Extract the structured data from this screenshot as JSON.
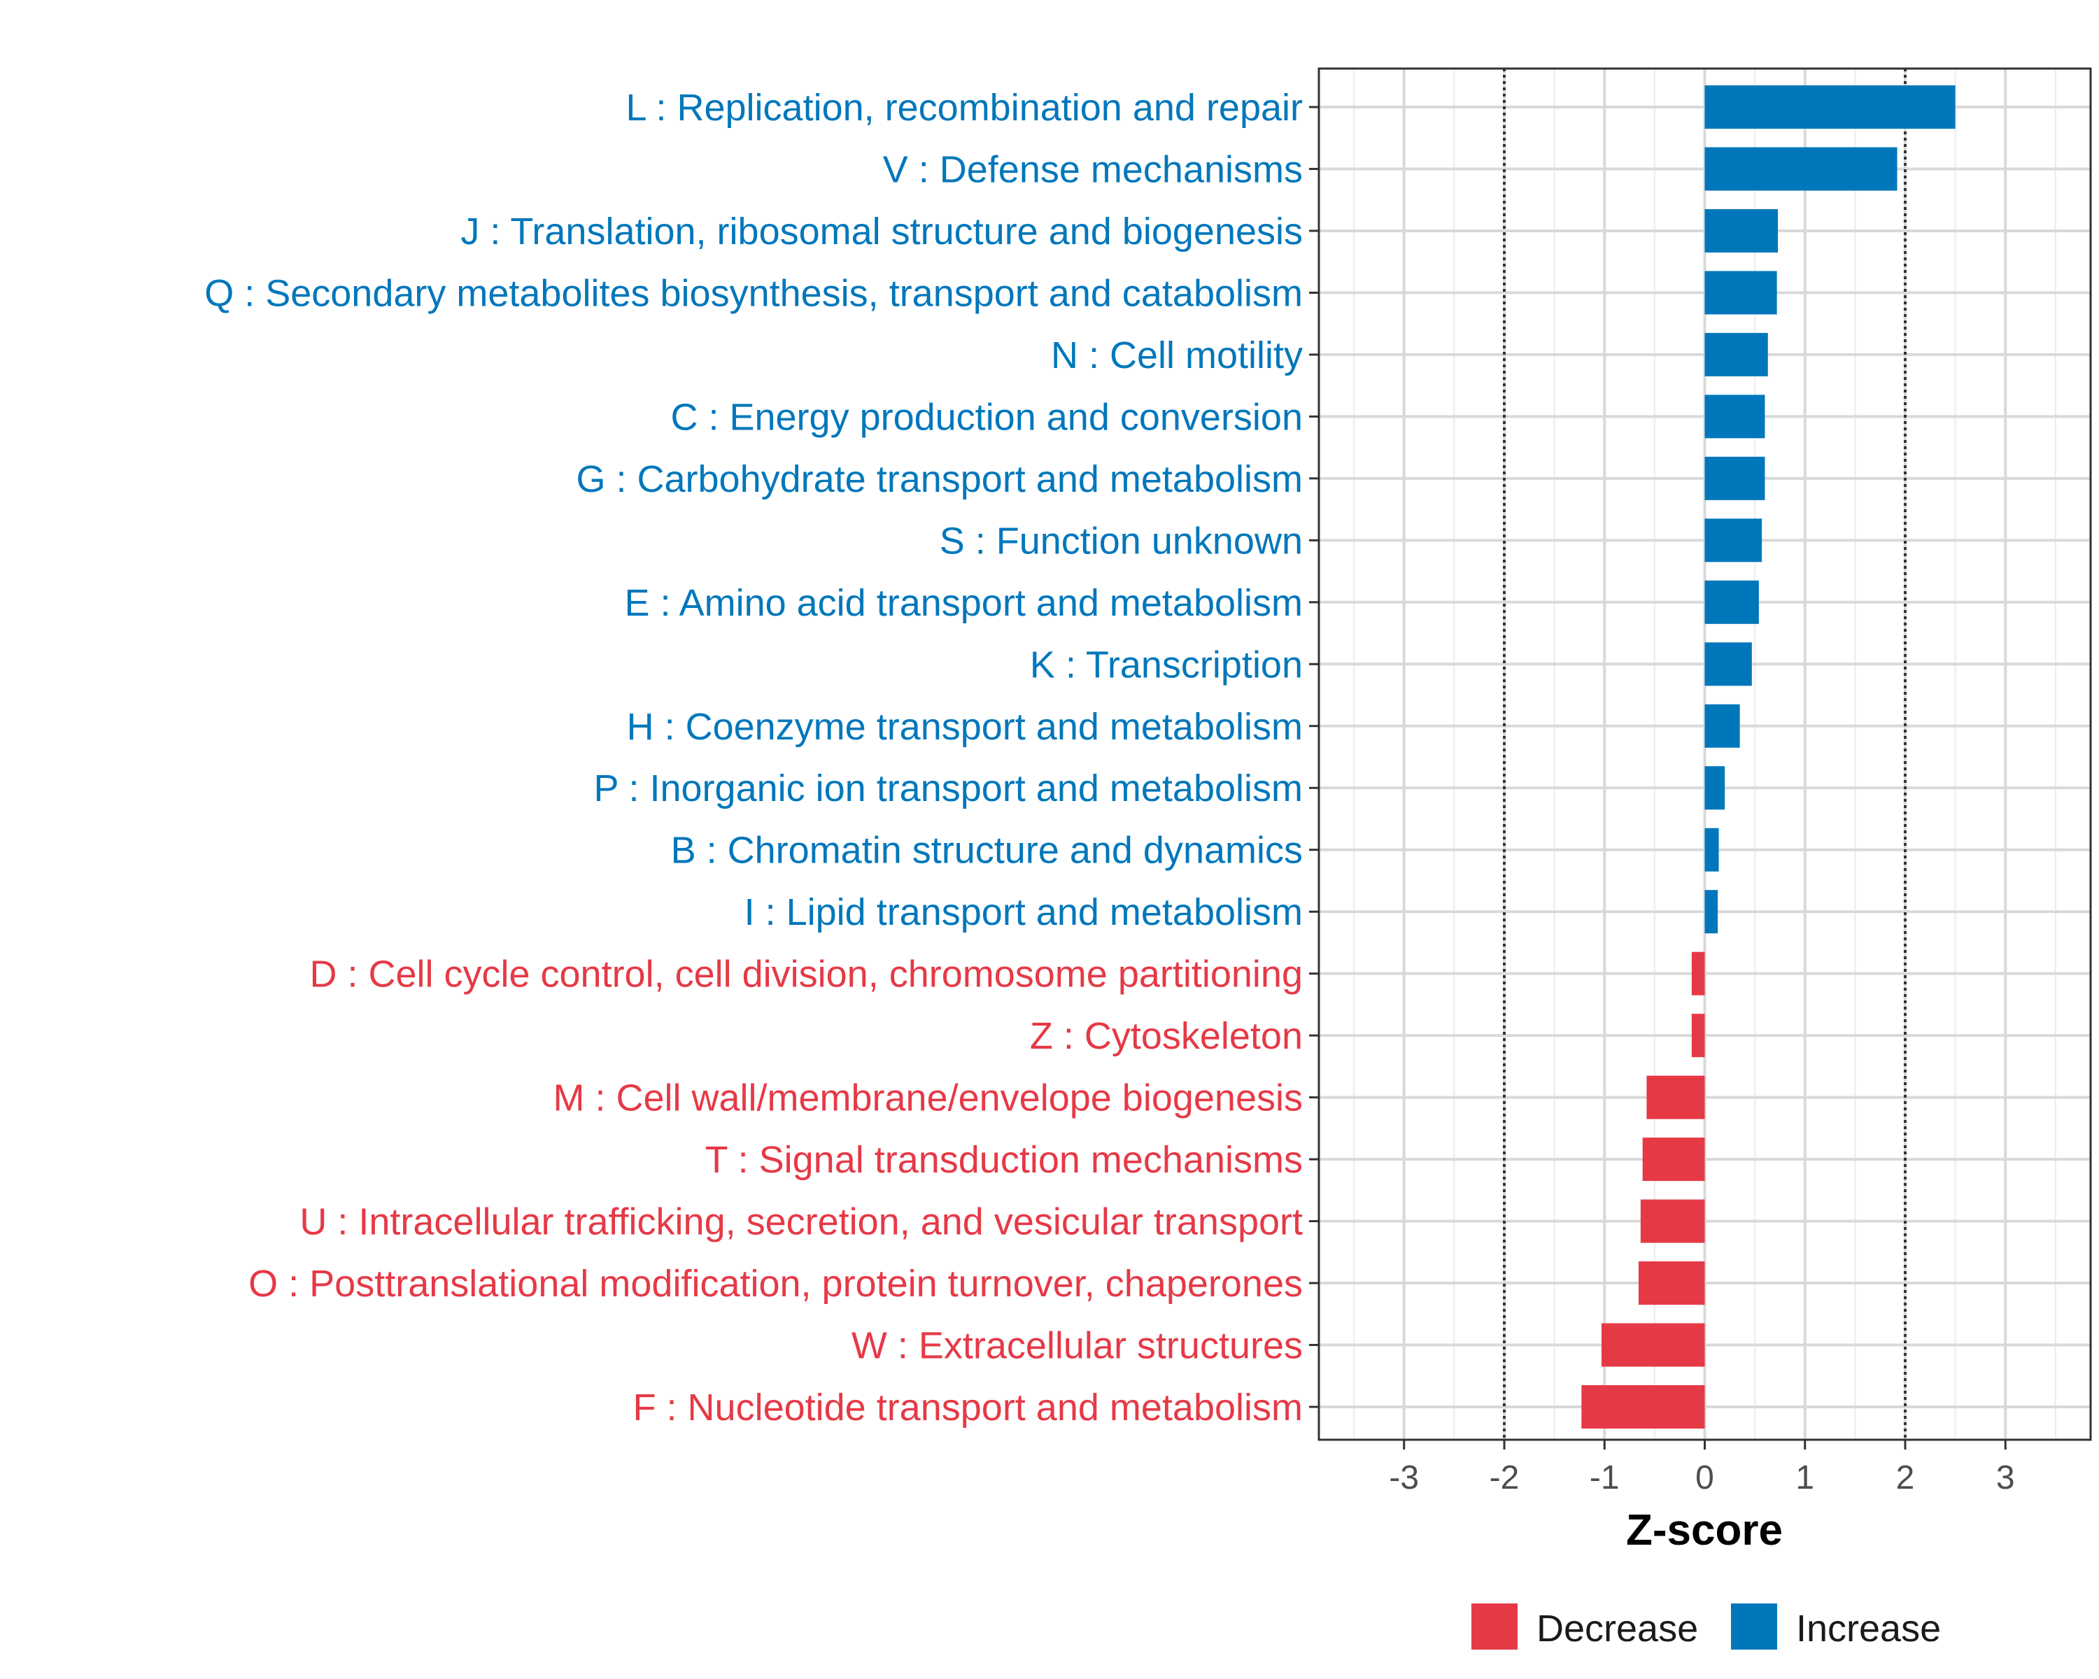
{
  "chart_data": {
    "type": "bar",
    "orientation": "horizontal",
    "xlabel": "Z-score",
    "ylabel": "",
    "xlim": [
      -3.85,
      3.85
    ],
    "x_ticks": [
      "-3",
      "-2",
      "-1",
      "0",
      "1",
      "2",
      "3"
    ],
    "x_tick_values": [
      -3,
      -2,
      -1,
      0,
      1,
      2,
      3
    ],
    "reference_lines": [
      -2,
      2
    ],
    "grid": true,
    "legend_position": "bottom",
    "colors": {
      "Decrease": "#e63946",
      "Increase": "#0077bb"
    },
    "legend": [
      {
        "label": "Decrease",
        "color": "#e63946"
      },
      {
        "label": "Increase",
        "color": "#0077bb"
      }
    ],
    "categories": [
      "L : Replication, recombination and repair",
      "V : Defense mechanisms",
      "J : Translation, ribosomal structure and biogenesis",
      "Q : Secondary metabolites biosynthesis, transport and catabolism",
      "N : Cell motility",
      "C : Energy production and conversion",
      "G : Carbohydrate transport and metabolism",
      "S : Function unknown",
      "E : Amino acid transport and metabolism",
      "K : Transcription",
      "H : Coenzyme transport and metabolism",
      "P : Inorganic ion transport and metabolism",
      "B : Chromatin structure and dynamics",
      "I : Lipid transport and metabolism",
      "D : Cell cycle control, cell division, chromosome partitioning",
      "Z : Cytoskeleton",
      "M : Cell wall/membrane/envelope biogenesis",
      "T : Signal transduction mechanisms",
      "U : Intracellular trafficking, secretion, and vesicular transport",
      "O : Posttranslational modification, protein turnover, chaperones",
      "W : Extracellular structures",
      "F : Nucleotide transport and metabolism"
    ],
    "values": [
      2.5,
      1.92,
      0.73,
      0.72,
      0.63,
      0.6,
      0.6,
      0.57,
      0.54,
      0.47,
      0.35,
      0.2,
      0.14,
      0.13,
      -0.13,
      -0.13,
      -0.58,
      -0.62,
      -0.64,
      -0.66,
      -1.03,
      -1.23
    ],
    "groups": [
      "Increase",
      "Increase",
      "Increase",
      "Increase",
      "Increase",
      "Increase",
      "Increase",
      "Increase",
      "Increase",
      "Increase",
      "Increase",
      "Increase",
      "Increase",
      "Increase",
      "Decrease",
      "Decrease",
      "Decrease",
      "Decrease",
      "Decrease",
      "Decrease",
      "Decrease",
      "Decrease"
    ]
  }
}
